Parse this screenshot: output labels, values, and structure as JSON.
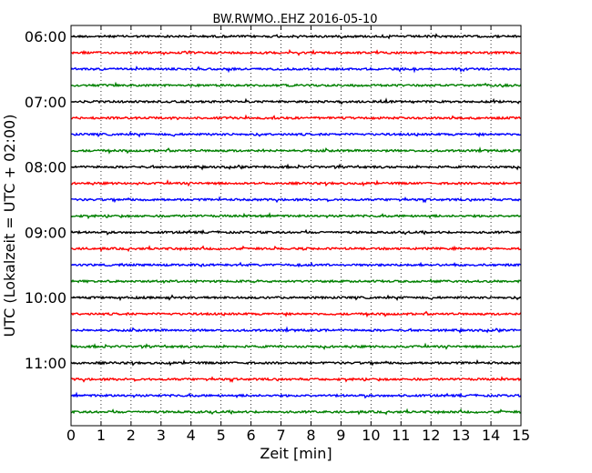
{
  "chart_data": {
    "type": "line",
    "title": "BW.RWMO..EHZ 2016-05-10",
    "xlabel": "Zeit  [min]",
    "ylabel": "UTC (Lokalzeit = UTC + 02:00)",
    "xlim": [
      0,
      15
    ],
    "x_ticks": [
      "0",
      "1",
      "2",
      "3",
      "4",
      "5",
      "6",
      "7",
      "8",
      "9",
      "10",
      "11",
      "12",
      "13",
      "14",
      "15"
    ],
    "y_tick_labels": [
      "06:00",
      "07:00",
      "08:00",
      "09:00",
      "10:00",
      "11:00"
    ],
    "grid": "vertical dotted",
    "trace_colors": [
      "#000000",
      "#ff0000",
      "#0000ff",
      "#008000"
    ],
    "traces": [
      {
        "start": "06:00",
        "color": "#000000"
      },
      {
        "start": "06:15",
        "color": "#ff0000"
      },
      {
        "start": "06:30",
        "color": "#0000ff"
      },
      {
        "start": "06:45",
        "color": "#008000"
      },
      {
        "start": "07:00",
        "color": "#000000"
      },
      {
        "start": "07:15",
        "color": "#ff0000"
      },
      {
        "start": "07:30",
        "color": "#0000ff"
      },
      {
        "start": "07:45",
        "color": "#008000"
      },
      {
        "start": "08:00",
        "color": "#000000"
      },
      {
        "start": "08:15",
        "color": "#ff0000"
      },
      {
        "start": "08:30",
        "color": "#0000ff"
      },
      {
        "start": "08:45",
        "color": "#008000"
      },
      {
        "start": "09:00",
        "color": "#000000"
      },
      {
        "start": "09:15",
        "color": "#ff0000"
      },
      {
        "start": "09:30",
        "color": "#0000ff"
      },
      {
        "start": "09:45",
        "color": "#008000"
      },
      {
        "start": "10:00",
        "color": "#000000"
      },
      {
        "start": "10:15",
        "color": "#ff0000"
      },
      {
        "start": "10:30",
        "color": "#0000ff"
      },
      {
        "start": "10:45",
        "color": "#008000"
      },
      {
        "start": "11:00",
        "color": "#000000"
      },
      {
        "start": "11:15",
        "color": "#ff0000"
      },
      {
        "start": "11:30",
        "color": "#0000ff"
      },
      {
        "start": "11:45",
        "color": "#008000"
      }
    ]
  }
}
